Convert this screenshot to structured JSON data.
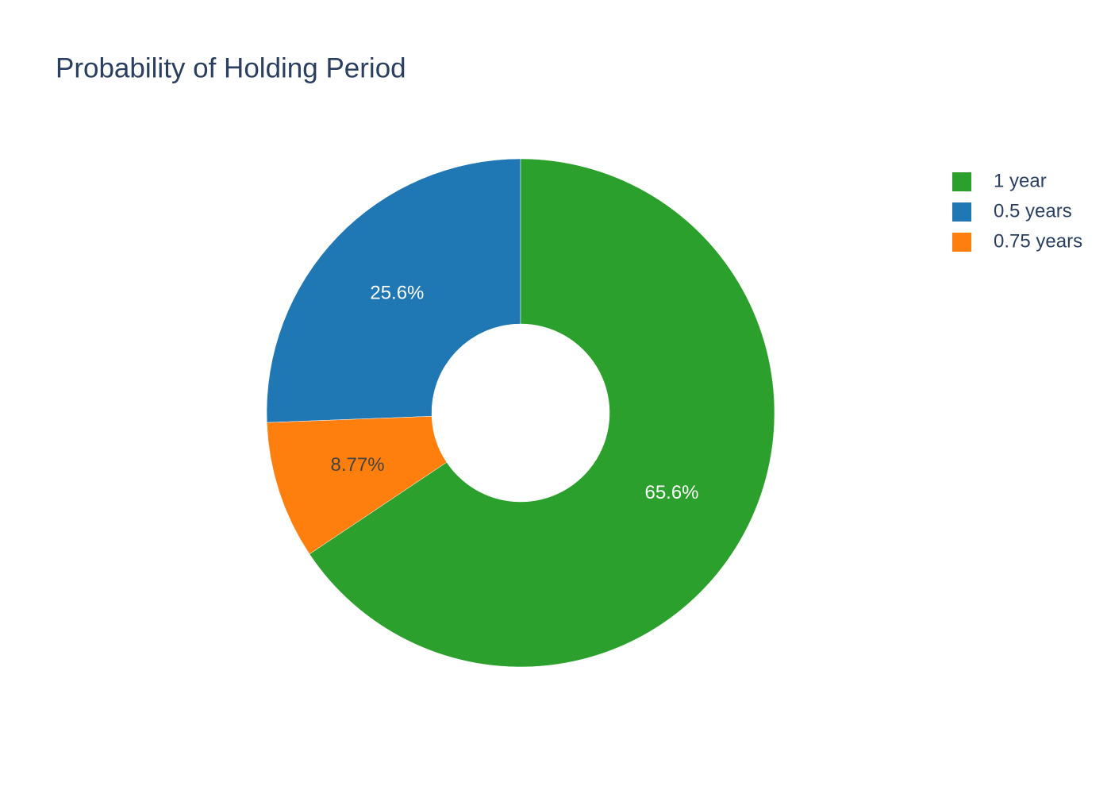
{
  "chart_data": {
    "type": "donut",
    "title": "Probability of Holding Period",
    "categories": [
      "1 year",
      "0.5 years",
      "0.75 years"
    ],
    "values": [
      65.6,
      25.6,
      8.77
    ],
    "value_labels": [
      "65.6%",
      "25.6%",
      "8.77%"
    ],
    "colors": [
      "#2ca02c",
      "#1f77b4",
      "#ff7f0e"
    ],
    "label_colors": [
      "#ffffff",
      "#ffffff",
      "#444444"
    ]
  }
}
